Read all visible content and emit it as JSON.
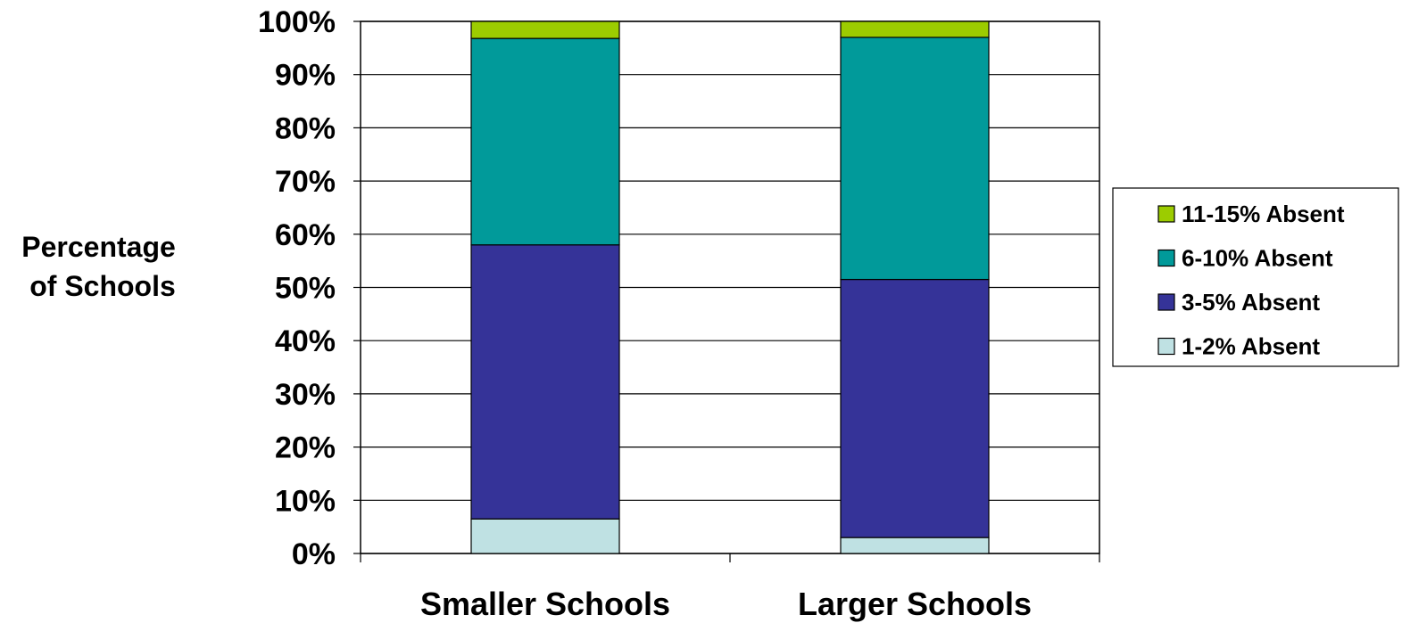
{
  "chart_data": {
    "type": "bar",
    "stacked": true,
    "categories": [
      "Smaller Schools",
      "Larger Schools"
    ],
    "series": [
      {
        "name": "1-2% Absent",
        "values": [
          6.5,
          3.0
        ],
        "color": "#bfe1e3"
      },
      {
        "name": "3-5% Absent",
        "values": [
          51.5,
          48.5
        ],
        "color": "#353398"
      },
      {
        "name": "6-10% Absent",
        "values": [
          38.8,
          45.5
        ],
        "color": "#019a9a"
      },
      {
        "name": "11-15% Absent",
        "values": [
          3.2,
          3.0
        ],
        "color": "#9ccc00"
      }
    ],
    "ylabel": "Percentage of Schools",
    "ylabel_lines": [
      "Percentage",
      "of Schools"
    ],
    "ylim": [
      0,
      100
    ],
    "yticks": [
      0,
      10,
      20,
      30,
      40,
      50,
      60,
      70,
      80,
      90,
      100
    ],
    "ytick_labels": [
      "0%",
      "10%",
      "20%",
      "30%",
      "40%",
      "50%",
      "60%",
      "70%",
      "80%",
      "90%",
      "100%"
    ],
    "grid": true,
    "legend_position": "right",
    "legend_order": [
      "11-15% Absent",
      "6-10% Absent",
      "3-5% Absent",
      "1-2% Absent"
    ]
  }
}
